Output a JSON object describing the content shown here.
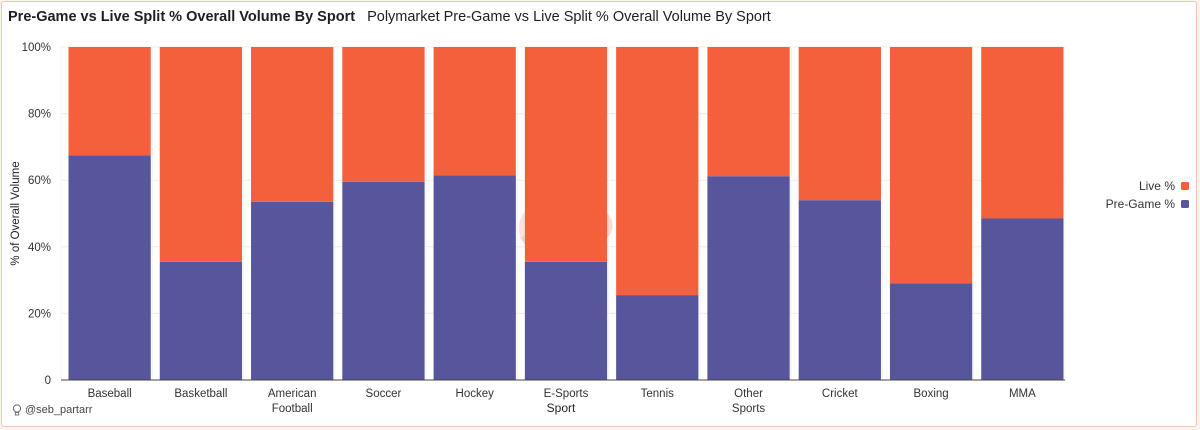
{
  "header": {
    "title": "Pre-Game vs Live Split % Overall Volume By Sport",
    "subtitle": "Polymarket Pre-Game vs Live Split % Overall Volume By Sport"
  },
  "watermark": "Dune",
  "author": "@seb_partarr",
  "colors": {
    "live": "#f5603c",
    "pregame": "#57559c",
    "grid": "#ececec",
    "axis": "#444444"
  },
  "chart_data": {
    "type": "bar",
    "stacked": true,
    "normalized": true,
    "xlabel": "Sport",
    "ylabel": "% of Overall Volume",
    "ylim": [
      0,
      100
    ],
    "yticks": [
      0,
      20,
      40,
      60,
      80,
      100
    ],
    "ytick_labels": [
      "0",
      "20%",
      "40%",
      "60%",
      "80%",
      "100%"
    ],
    "grid": true,
    "legend_position": "right",
    "categories": [
      "Baseball",
      "Basketball",
      "American Football",
      "Soccer",
      "Hockey",
      "E-Sports",
      "Tennis",
      "Other Sports",
      "Cricket",
      "Boxing",
      "MMA"
    ],
    "category_labels": [
      [
        "Baseball"
      ],
      [
        "Basketball"
      ],
      [
        "American",
        "Football"
      ],
      [
        "Soccer"
      ],
      [
        "Hockey"
      ],
      [
        "E-Sports"
      ],
      [
        "Tennis"
      ],
      [
        "Other",
        "Sports"
      ],
      [
        "Cricket"
      ],
      [
        "Boxing"
      ],
      [
        "MMA"
      ]
    ],
    "series": [
      {
        "name": "Pre-Game %",
        "color": "#57559c",
        "values": [
          67.5,
          35.5,
          53.5,
          59.5,
          61.5,
          35.5,
          25.5,
          61.2,
          54.0,
          29.0,
          48.5
        ]
      },
      {
        "name": "Live %",
        "color": "#f5603c",
        "values": [
          32.5,
          64.5,
          46.5,
          40.5,
          38.5,
          64.5,
          74.5,
          38.8,
          46.0,
          71.0,
          51.5
        ]
      }
    ],
    "legend": [
      {
        "name": "Live %",
        "color": "#f5603c"
      },
      {
        "name": "Pre-Game %",
        "color": "#57559c"
      }
    ]
  }
}
